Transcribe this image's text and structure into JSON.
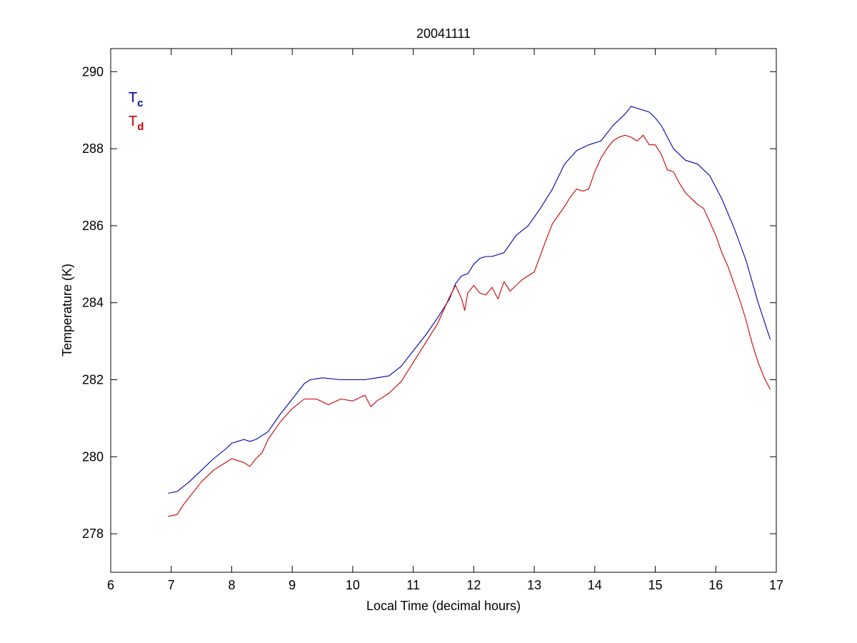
{
  "chart_data": {
    "type": "line",
    "title": "20041111",
    "xlabel": "Local Time (decimal hours)",
    "ylabel": "Temperature (K)",
    "xlim": [
      6,
      17
    ],
    "ylim": [
      277,
      290.6
    ],
    "xticks": [
      6,
      7,
      8,
      9,
      10,
      11,
      12,
      13,
      14,
      15,
      16,
      17
    ],
    "yticks": [
      278,
      280,
      282,
      284,
      286,
      288,
      290
    ],
    "grid": false,
    "legend_position": "top-left",
    "series": [
      {
        "base": "T",
        "sub": "c",
        "color": "#0000aa",
        "x": [
          6.95,
          7.1,
          7.3,
          7.5,
          7.7,
          7.9,
          8.0,
          8.1,
          8.2,
          8.3,
          8.4,
          8.6,
          8.8,
          9.0,
          9.2,
          9.3,
          9.5,
          9.8,
          10.0,
          10.2,
          10.4,
          10.6,
          10.8,
          11.0,
          11.2,
          11.4,
          11.6,
          11.7,
          11.8,
          11.9,
          12.0,
          12.1,
          12.2,
          12.3,
          12.5,
          12.7,
          12.9,
          13.1,
          13.3,
          13.5,
          13.7,
          13.9,
          14.1,
          14.3,
          14.5,
          14.6,
          14.7,
          14.8,
          14.9,
          15.0,
          15.1,
          15.3,
          15.5,
          15.7,
          15.9,
          16.1,
          16.3,
          16.5,
          16.7,
          16.9
        ],
        "y": [
          279.05,
          279.1,
          279.35,
          279.65,
          279.95,
          280.2,
          280.35,
          280.4,
          280.45,
          280.4,
          280.45,
          280.65,
          281.1,
          281.5,
          281.9,
          282.0,
          282.05,
          282.0,
          282.0,
          282.0,
          282.05,
          282.1,
          282.35,
          282.75,
          283.15,
          283.6,
          284.1,
          284.5,
          284.7,
          284.75,
          285.0,
          285.15,
          285.2,
          285.2,
          285.3,
          285.75,
          286.0,
          286.45,
          286.95,
          287.6,
          287.95,
          288.1,
          288.2,
          288.6,
          288.9,
          289.1,
          289.05,
          289.0,
          288.95,
          288.8,
          288.6,
          288.0,
          287.7,
          287.6,
          287.3,
          286.7,
          285.95,
          285.1,
          284.0,
          283.05
        ]
      },
      {
        "base": "T",
        "sub": "d",
        "color": "#cc0000",
        "x": [
          6.95,
          7.1,
          7.2,
          7.3,
          7.5,
          7.7,
          7.9,
          8.0,
          8.1,
          8.2,
          8.3,
          8.4,
          8.5,
          8.6,
          8.8,
          9.0,
          9.2,
          9.4,
          9.6,
          9.8,
          10.0,
          10.2,
          10.3,
          10.4,
          10.6,
          10.8,
          11.0,
          11.2,
          11.4,
          11.6,
          11.7,
          11.8,
          11.85,
          11.9,
          12.0,
          12.1,
          12.2,
          12.3,
          12.4,
          12.5,
          12.6,
          12.8,
          13.0,
          13.2,
          13.3,
          13.5,
          13.6,
          13.7,
          13.8,
          13.9,
          14.0,
          14.1,
          14.2,
          14.3,
          14.4,
          14.5,
          14.6,
          14.7,
          14.8,
          14.9,
          15.0,
          15.1,
          15.2,
          15.3,
          15.4,
          15.5,
          15.6,
          15.7,
          15.8,
          15.9,
          16.0,
          16.1,
          16.2,
          16.3,
          16.4,
          16.5,
          16.6,
          16.7,
          16.8,
          16.9
        ],
        "y": [
          278.45,
          278.5,
          278.75,
          278.95,
          279.35,
          279.65,
          279.85,
          279.95,
          279.9,
          279.85,
          279.75,
          279.95,
          280.1,
          280.45,
          280.9,
          281.25,
          281.5,
          281.5,
          281.35,
          281.5,
          281.45,
          281.6,
          281.3,
          281.45,
          281.65,
          281.95,
          282.45,
          282.95,
          283.45,
          284.15,
          284.45,
          284.1,
          283.8,
          284.25,
          284.45,
          284.25,
          284.2,
          284.4,
          284.1,
          284.55,
          284.3,
          284.6,
          284.8,
          285.65,
          286.05,
          286.5,
          286.75,
          286.95,
          286.9,
          286.95,
          287.4,
          287.75,
          288.0,
          288.2,
          288.3,
          288.35,
          288.3,
          288.2,
          288.35,
          288.1,
          288.1,
          287.85,
          287.45,
          287.4,
          287.1,
          286.85,
          286.7,
          286.55,
          286.45,
          286.1,
          285.75,
          285.3,
          284.95,
          284.5,
          284.05,
          283.55,
          282.95,
          282.45,
          282.05,
          281.75
        ]
      }
    ]
  }
}
